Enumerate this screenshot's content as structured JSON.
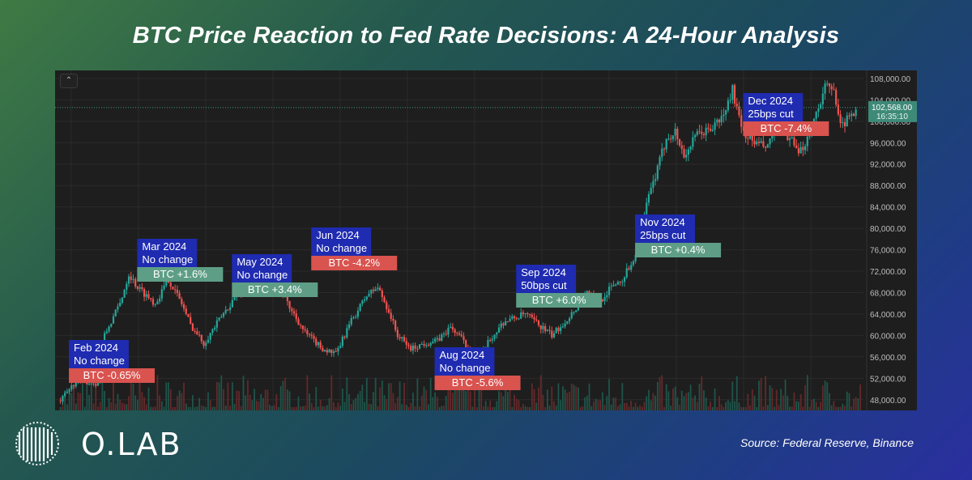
{
  "title": "BTC Price Reaction to Fed Rate Decisions: A 24-Hour Analysis",
  "brand": "O.LAB",
  "source": "Source: Federal Reserve, Binance",
  "colors": {
    "up": "#26a69a",
    "down": "#ef5350",
    "event_bg": "#1f2bb0",
    "positive_label": "#5e9e86",
    "negative_label": "#d9534f"
  },
  "chart_data": {
    "type": "candlestick",
    "ylim": [
      46000,
      109500
    ],
    "y_ticks": [
      "108,000.00",
      "104,000.00",
      "100,000.00",
      "96,000.00",
      "92,000.00",
      "88,000.00",
      "84,000.00",
      "80,000.00",
      "76,000.00",
      "72,000.00",
      "68,000.00",
      "64,000.00",
      "60,000.00",
      "56,000.00",
      "52,000.00",
      "48,000.00"
    ],
    "y_tick_values": [
      108000,
      104000,
      100000,
      96000,
      92000,
      88000,
      84000,
      80000,
      76000,
      72000,
      68000,
      64000,
      60000,
      56000,
      52000,
      48000
    ],
    "last_price": {
      "label": "102,568.00",
      "countdown": "16:35:10",
      "value": 102568
    },
    "price_path": [
      [
        1,
        47800
      ],
      [
        8,
        51500
      ],
      [
        18,
        51000
      ],
      [
        21,
        60000
      ],
      [
        28,
        66000
      ],
      [
        32,
        71500
      ],
      [
        36,
        69000
      ],
      [
        44,
        66000
      ],
      [
        50,
        70500
      ],
      [
        56,
        66000
      ],
      [
        60,
        62000
      ],
      [
        66,
        58500
      ],
      [
        74,
        63500
      ],
      [
        80,
        67000
      ],
      [
        86,
        69500
      ],
      [
        92,
        70500
      ],
      [
        97,
        71500
      ],
      [
        104,
        66000
      ],
      [
        112,
        60500
      ],
      [
        120,
        57500
      ],
      [
        126,
        56500
      ],
      [
        132,
        62000
      ],
      [
        140,
        67500
      ],
      [
        145,
        69000
      ],
      [
        150,
        64500
      ],
      [
        154,
        60000
      ],
      [
        160,
        57500
      ],
      [
        166,
        58500
      ],
      [
        172,
        59000
      ],
      [
        178,
        61500
      ],
      [
        182,
        60000
      ],
      [
        190,
        55000
      ],
      [
        194,
        58000
      ],
      [
        202,
        62500
      ],
      [
        212,
        64000
      ],
      [
        218,
        62000
      ],
      [
        224,
        60000
      ],
      [
        232,
        63500
      ],
      [
        240,
        68000
      ],
      [
        246,
        66500
      ],
      [
        252,
        69500
      ],
      [
        256,
        70500
      ],
      [
        262,
        75000
      ],
      [
        268,
        86000
      ],
      [
        272,
        91000
      ],
      [
        276,
        97000
      ],
      [
        280,
        98000
      ],
      [
        284,
        93500
      ],
      [
        290,
        97500
      ],
      [
        296,
        98500
      ],
      [
        302,
        101000
      ],
      [
        306,
        106000
      ],
      [
        310,
        98500
      ],
      [
        316,
        96000
      ],
      [
        322,
        95000
      ],
      [
        326,
        99500
      ],
      [
        332,
        97000
      ],
      [
        336,
        93500
      ],
      [
        340,
        97000
      ],
      [
        344,
        101500
      ],
      [
        348,
        106500
      ],
      [
        352,
        105500
      ],
      [
        356,
        99000
      ],
      [
        362,
        102568
      ]
    ],
    "events": [
      {
        "date": "Feb 2024",
        "decision": "No change",
        "btc": "BTC -0.65%",
        "change_pct": -0.65,
        "x": 7,
        "sign": "neg"
      },
      {
        "date": "Mar 2024",
        "decision": "No change",
        "btc": "BTC +1.6%",
        "change_pct": 1.6,
        "x": 38,
        "sign": "pos"
      },
      {
        "date": "May 2024",
        "decision": "No change",
        "btc": "BTC +3.4%",
        "change_pct": 3.4,
        "x": 81,
        "sign": "pos"
      },
      {
        "date": "Jun 2024",
        "decision": "No change",
        "btc": "BTC -4.2%",
        "change_pct": -4.2,
        "x": 117,
        "sign": "neg"
      },
      {
        "date": "Aug 2024",
        "decision": "No change",
        "btc": "BTC -5.6%",
        "change_pct": -5.6,
        "x": 173,
        "sign": "neg"
      },
      {
        "date": "Sep 2024",
        "decision": "50bps cut",
        "btc": "BTC +6.0%",
        "change_pct": 6.0,
        "x": 210,
        "sign": "pos"
      },
      {
        "date": "Nov 2024",
        "decision": "25bps cut",
        "btc": "BTC +0.4%",
        "change_pct": 0.4,
        "x": 264,
        "sign": "pos"
      },
      {
        "date": "Dec 2024",
        "decision": "25bps cut",
        "btc": "BTC -7.4%",
        "change_pct": -7.4,
        "x": 313,
        "sign": "neg"
      }
    ]
  }
}
